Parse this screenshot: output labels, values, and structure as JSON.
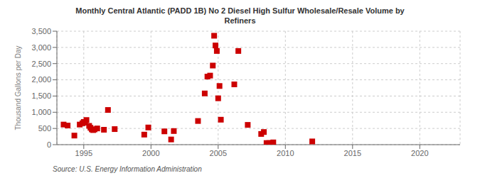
{
  "chart_data": {
    "type": "scatter",
    "title": "Monthly Central Atlantic (PADD 1B) No 2 Diesel High Sulfur Wholesale/Resale Volume by\nRefiners",
    "ylabel": "Thousand Gallons per Day",
    "source": "Source: U.S. Energy Information Administration",
    "color": "#cc0000",
    "marker": "square",
    "grid": true,
    "xlim": [
      1993,
      2023
    ],
    "ylim": [
      0,
      3500
    ],
    "xticks": [
      1995,
      2000,
      2005,
      2010,
      2015,
      2020
    ],
    "yticks": [
      0,
      500,
      {
        "value": 1000,
        "label": "1,000"
      },
      {
        "value": 1500,
        "label": "1,500"
      },
      {
        "value": 2000,
        "label": "2,000"
      },
      {
        "value": 2500,
        "label": "2,500"
      },
      {
        "value": 3000,
        "label": "3,000"
      },
      {
        "value": 3500,
        "label": "3,500"
      }
    ],
    "x": [
      1993.5,
      1993.8,
      1994.3,
      1994.7,
      1994.9,
      1995.0,
      1995.1,
      1995.2,
      1995.4,
      1995.5,
      1995.6,
      1995.7,
      1995.8,
      1996.0,
      1996.5,
      1996.8,
      1997.3,
      1999.5,
      1999.8,
      2001.0,
      2001.5,
      2001.7,
      2003.5,
      2004.0,
      2004.2,
      2004.4,
      2004.6,
      2004.7,
      2004.8,
      2004.9,
      2005.0,
      2005.1,
      2005.2,
      2006.2,
      2006.5,
      2007.2,
      2008.2,
      2008.4,
      2008.6,
      2008.8,
      2009.0,
      2009.1,
      2012.0
    ],
    "values": [
      620,
      590,
      280,
      620,
      660,
      700,
      680,
      760,
      580,
      520,
      470,
      450,
      470,
      500,
      460,
      1070,
      480,
      310,
      530,
      410,
      160,
      420,
      730,
      1580,
      2100,
      2130,
      2440,
      3360,
      3060,
      2890,
      1430,
      1810,
      770,
      1860,
      2890,
      610,
      330,
      390,
      50,
      50,
      50,
      70,
      100
    ]
  }
}
